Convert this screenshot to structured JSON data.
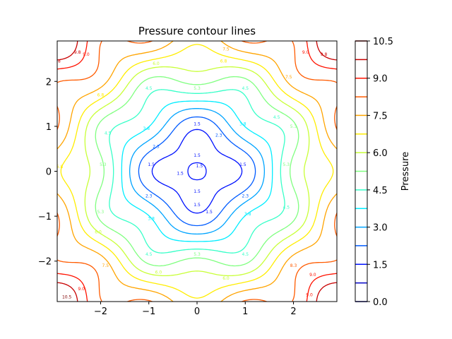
{
  "chart_data": {
    "type": "contour",
    "title": "Pressure contour lines",
    "xlabel": "",
    "ylabel": "",
    "xlim": [
      -2.9,
      2.9
    ],
    "ylim": [
      -2.9,
      2.9
    ],
    "xticks": [
      -2,
      -1,
      0,
      1,
      2
    ],
    "yticks": [
      -2,
      -1,
      0,
      1,
      2
    ],
    "xtick_labels": [
      "−2",
      "−1",
      "0",
      "1",
      "2"
    ],
    "ytick_labels": [
      "−2",
      "−1",
      "0",
      "1",
      "2"
    ],
    "levels": [
      0.0,
      0.75,
      1.5,
      2.25,
      3.0,
      3.75,
      4.5,
      5.25,
      6.0,
      6.75,
      7.5,
      8.25,
      9.0,
      9.75,
      10.5
    ],
    "inline_labels": [
      "1.5",
      "2.5",
      "3.0",
      "3.5",
      "4.5",
      "5.5",
      "6.0",
      "6.5",
      "7.5",
      "8.0",
      "8.5",
      "9.0",
      "9.5",
      "10.0"
    ],
    "colormap": "jet",
    "colorbar": {
      "label": "Pressure",
      "ticks": [
        0.0,
        1.5,
        3.0,
        4.5,
        6.0,
        7.5,
        9.0,
        10.5
      ],
      "tick_labels": [
        "0.0",
        "1.5",
        "3.0",
        "4.5",
        "6.0",
        "7.5",
        "9.0",
        "10.5"
      ],
      "range": [
        0.0,
        10.5
      ]
    },
    "grid": false
  }
}
